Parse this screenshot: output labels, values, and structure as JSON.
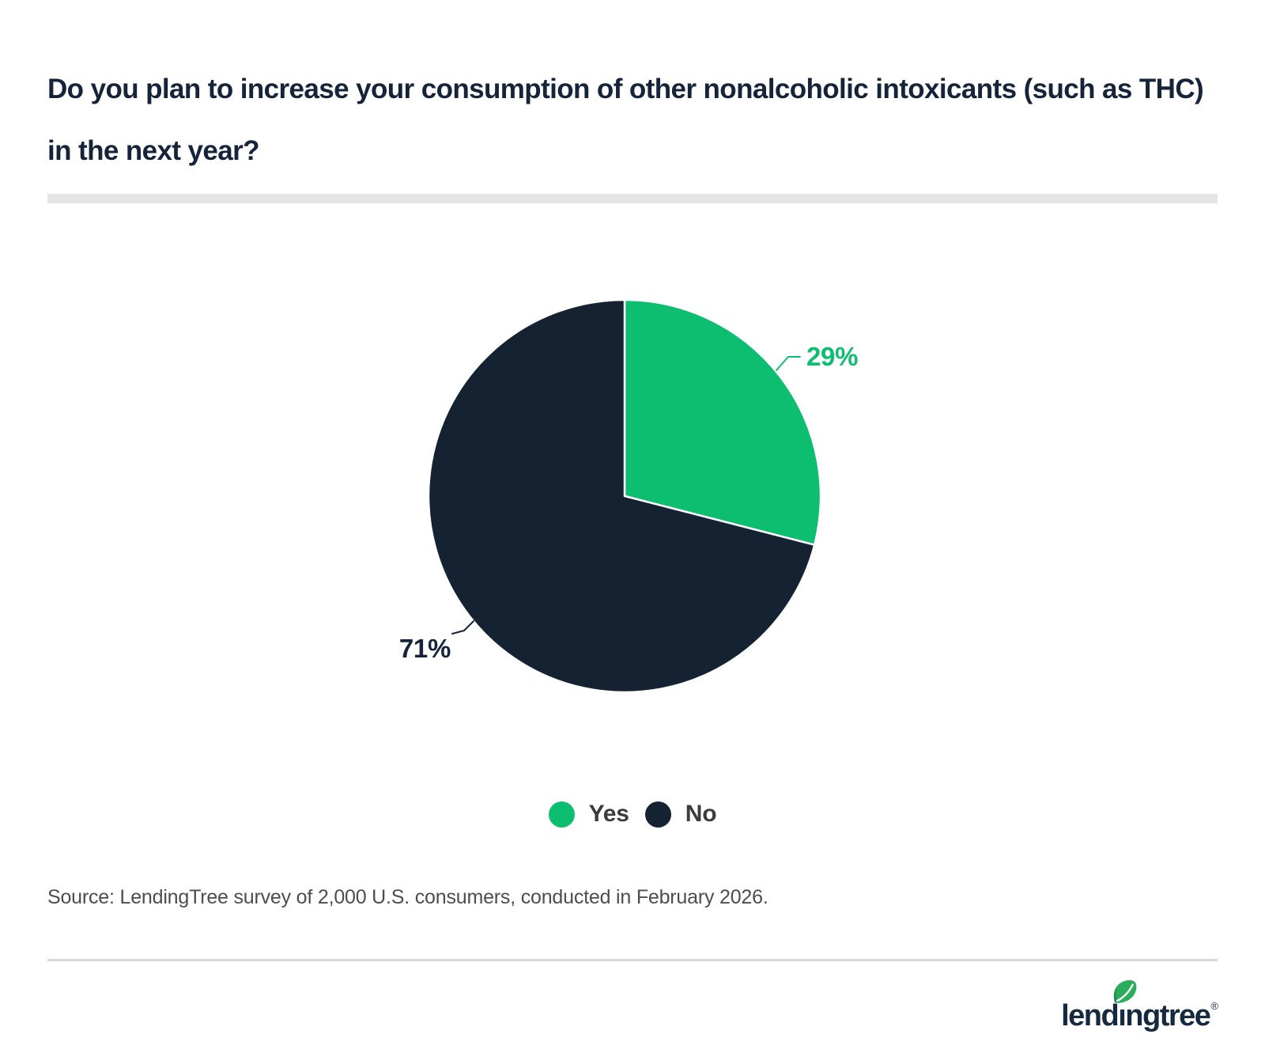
{
  "title": "Do you plan to increase your consumption of other nonalcoholic intoxicants (such as THC) in the next year?",
  "chart_data": {
    "type": "pie",
    "title": "Do you plan to increase your consumption of other nonalcoholic intoxicants (such as THC) in the next year?",
    "categories": [
      "Yes",
      "No"
    ],
    "values": [
      29,
      71
    ],
    "labels": [
      "29%",
      "71%"
    ],
    "colors": [
      "#0EBE70",
      "#152231"
    ],
    "start_angle_deg": 0,
    "direction": "clockwise",
    "legend_position": "bottom"
  },
  "legend": {
    "items": [
      {
        "label": "Yes",
        "color": "#0EBE70"
      },
      {
        "label": "No",
        "color": "#152231"
      }
    ]
  },
  "source_text": "Source: LendingTree survey of 2,000 U.S. consumers, conducted in February 2026.",
  "logo": {
    "brand": "lendingtree",
    "part_lend": "lend",
    "part_i": "ı",
    "part_ngtree": "ngtree",
    "registered_mark": "®"
  }
}
